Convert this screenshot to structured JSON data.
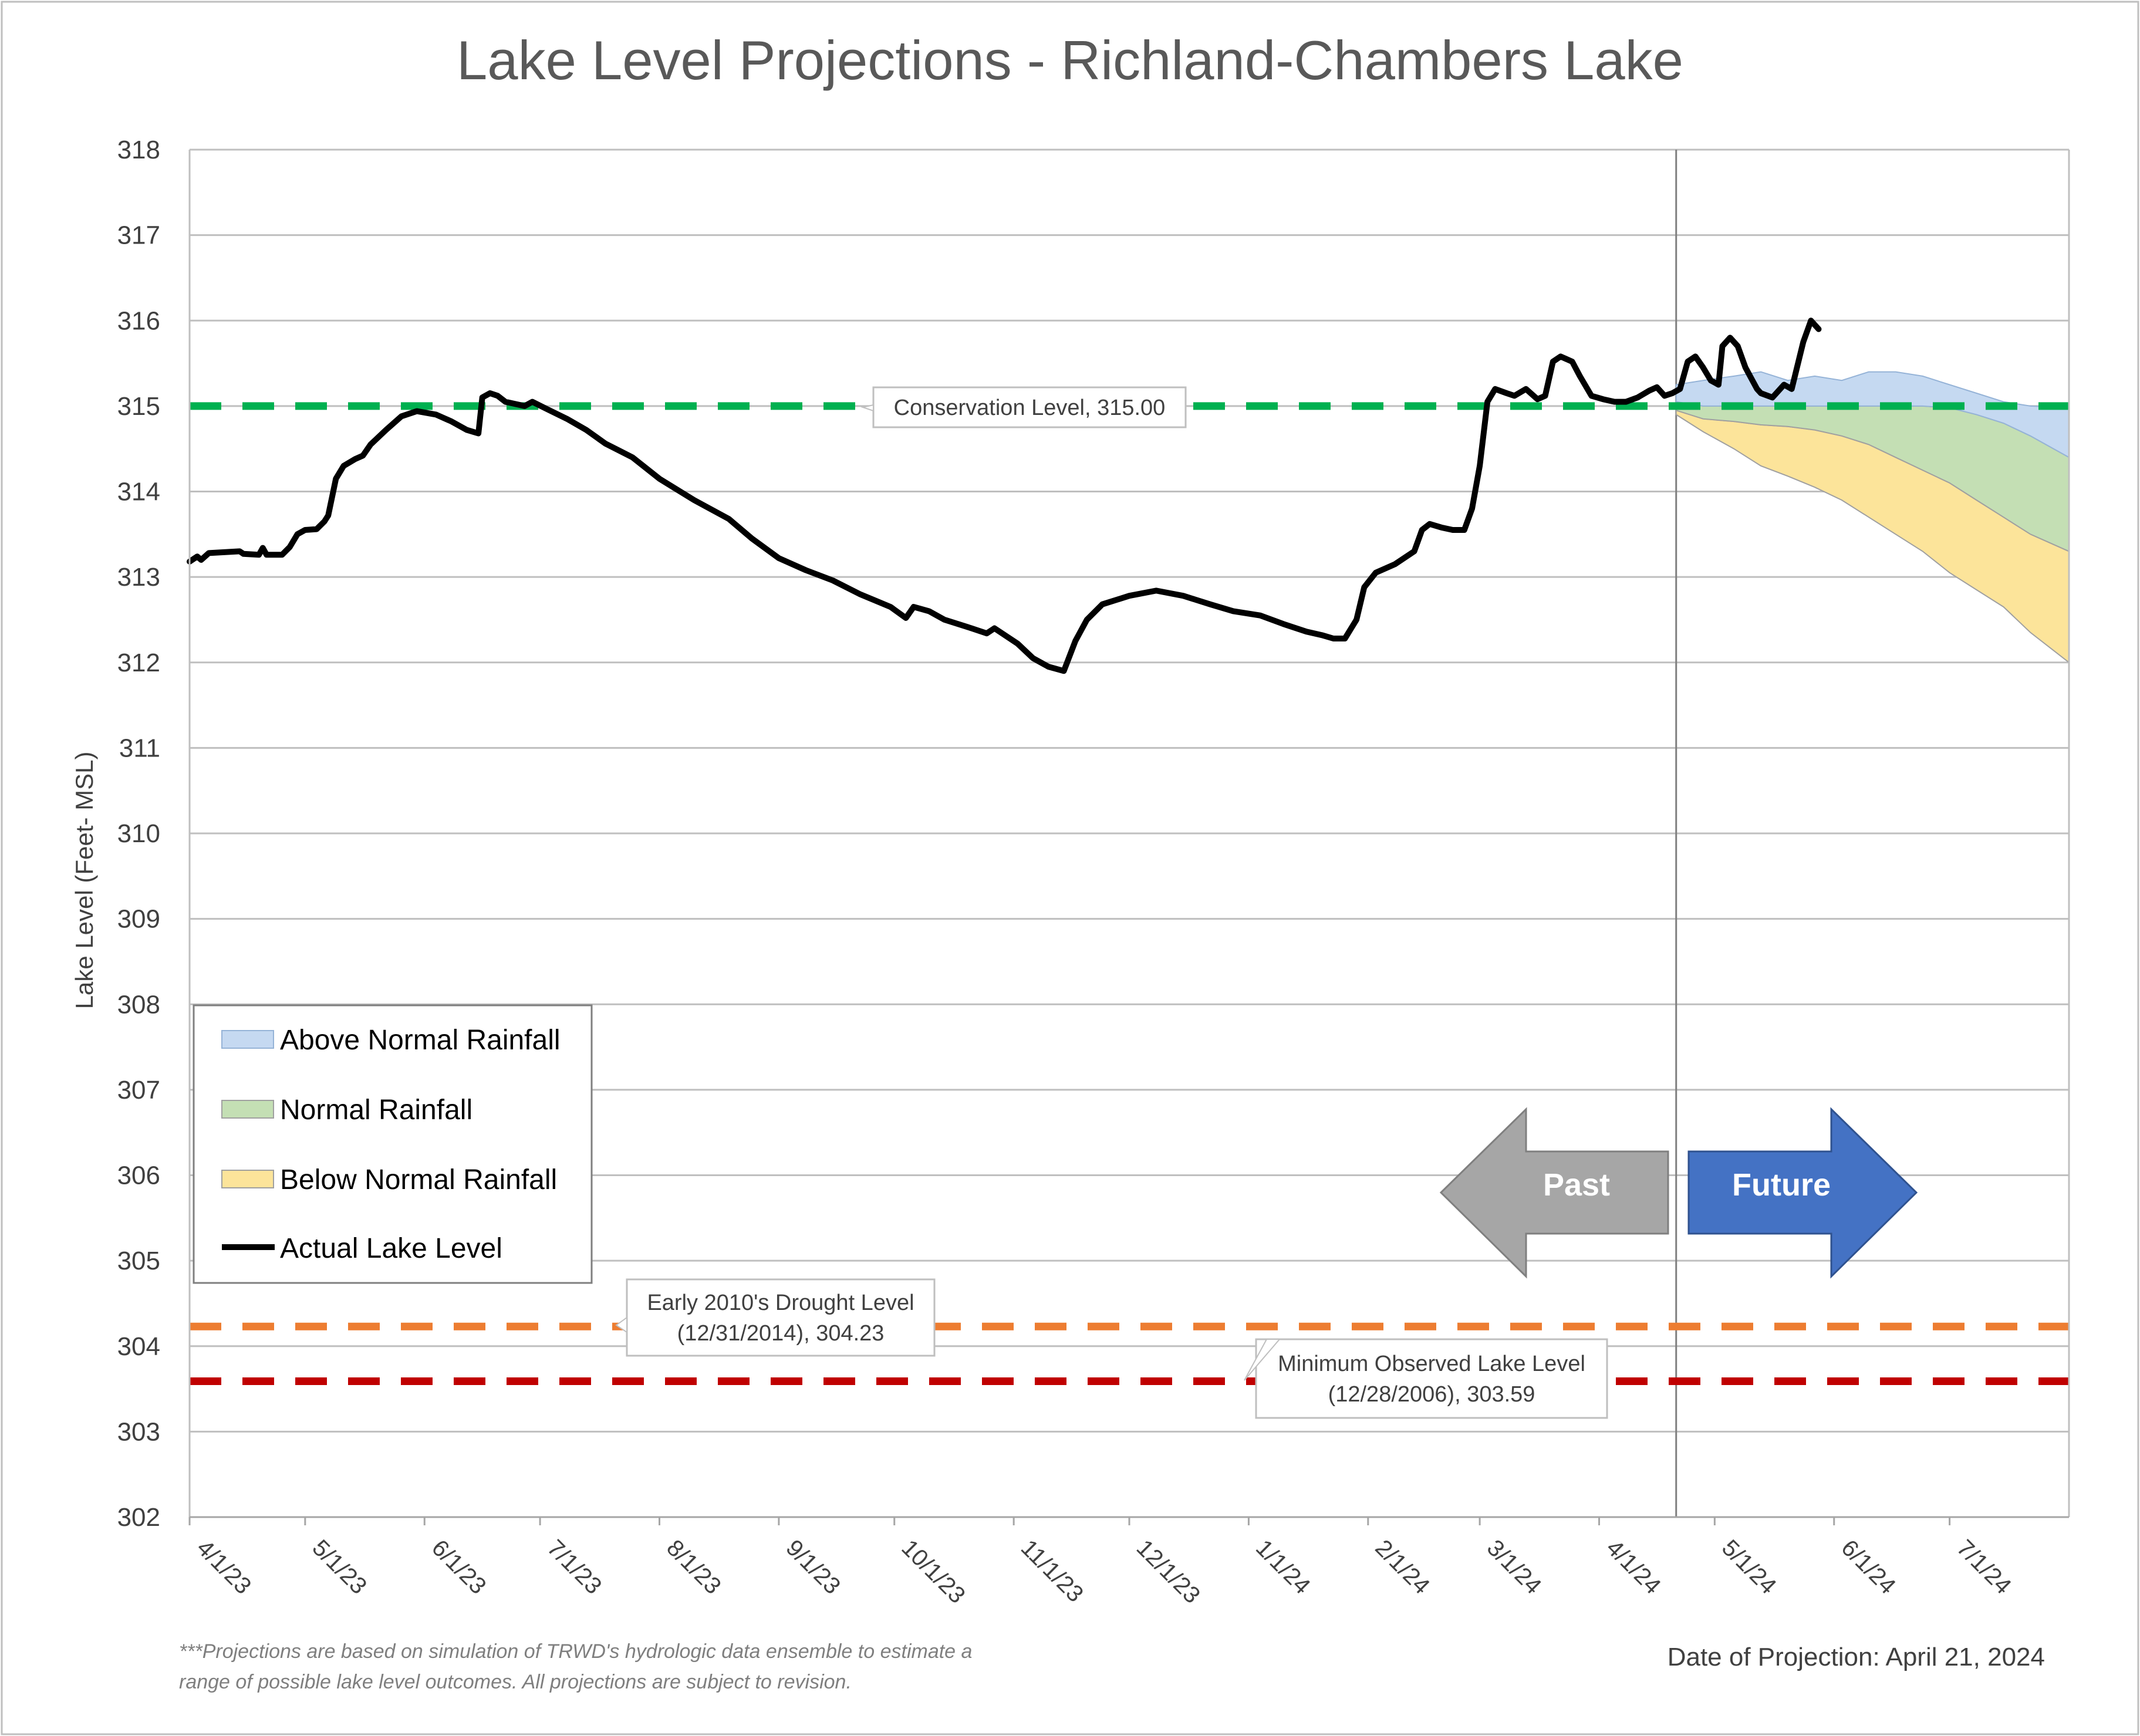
{
  "title": "Lake Level Projections - Richland-Chambers Lake",
  "footnote": [
    "***Projections are based on simulation of TRWD's hydrologic data ensemble to estimate a",
    "range of possible lake level outcomes.  All projections are subject to revision."
  ],
  "projection_date": "Date of Projection: April 21, 2024",
  "arrows": {
    "past": "Past",
    "future": "Future"
  },
  "colors": {
    "above": "#c5d9f1",
    "above_edge": "#95b3d7",
    "normal": "#c4dfb4",
    "normal_edge": "#a0a0a0",
    "below": "#fce49a",
    "below_edge": "#a0a0a0",
    "actual": "#000000",
    "conservation": "#00b050",
    "drought": "#ed7d31",
    "minimum": "#c00000",
    "past_arrow": "#a6a6a6",
    "future_arrow": "#4472c4",
    "grid": "#bfbfbf"
  },
  "chart_data": {
    "type": "area",
    "ylabel": "Lake Level (Feet- MSL)",
    "xlabel": "",
    "ylim": [
      302,
      318
    ],
    "yticks": [
      "302",
      "303",
      "304",
      "305",
      "306",
      "307",
      "308",
      "309",
      "310",
      "311",
      "312",
      "313",
      "314",
      "315",
      "316",
      "317",
      "318"
    ],
    "xlim": [
      "2023-04-01",
      "2024-08-01"
    ],
    "xticks": [
      {
        "label": "4/1/23",
        "date": "2023-04-01"
      },
      {
        "label": "5/1/23",
        "date": "2023-05-01"
      },
      {
        "label": "6/1/23",
        "date": "2023-06-01"
      },
      {
        "label": "7/1/23",
        "date": "2023-07-01"
      },
      {
        "label": "8/1/23",
        "date": "2023-08-01"
      },
      {
        "label": "9/1/23",
        "date": "2023-09-01"
      },
      {
        "label": "10/1/23",
        "date": "2023-10-01"
      },
      {
        "label": "11/1/23",
        "date": "2023-11-01"
      },
      {
        "label": "12/1/23",
        "date": "2023-12-01"
      },
      {
        "label": "1/1/24",
        "date": "2024-01-01"
      },
      {
        "label": "2/1/24",
        "date": "2024-02-01"
      },
      {
        "label": "3/1/24",
        "date": "2024-03-01"
      },
      {
        "label": "4/1/24",
        "date": "2024-04-01"
      },
      {
        "label": "5/1/24",
        "date": "2024-05-01"
      },
      {
        "label": "6/1/24",
        "date": "2024-06-01"
      },
      {
        "label": "7/1/24",
        "date": "2024-07-01"
      }
    ],
    "grid": true,
    "legend_position": "lower-left",
    "legend": [
      {
        "label": "Above Normal Rainfall",
        "key": "above"
      },
      {
        "label": "Normal Rainfall",
        "key": "normal"
      },
      {
        "label": "Below Normal Rainfall",
        "key": "below"
      },
      {
        "label": "Actual Lake Level",
        "key": "actual"
      }
    ],
    "projection_start": "2024-04-21",
    "reference_lines": [
      {
        "key": "conservation",
        "value": 315.0,
        "label": [
          "Conservation Level, 315.00"
        ]
      },
      {
        "key": "drought",
        "value": 304.23,
        "label": [
          "Early 2010's Drought Level",
          "(12/31/2014), 304.23"
        ]
      },
      {
        "key": "minimum",
        "value": 303.59,
        "label": [
          "Minimum Observed Lake Level",
          "(12/28/2006), 303.59"
        ]
      }
    ],
    "series": [
      {
        "name": "Actual Lake Level",
        "key": "actual",
        "points": [
          [
            "2023-04-01",
            313.18
          ],
          [
            "2023-04-03",
            313.24
          ],
          [
            "2023-04-04",
            313.2
          ],
          [
            "2023-04-06",
            313.28
          ],
          [
            "2023-04-10",
            313.29
          ],
          [
            "2023-04-14",
            313.3
          ],
          [
            "2023-04-15",
            313.27
          ],
          [
            "2023-04-19",
            313.26
          ],
          [
            "2023-04-20",
            313.34
          ],
          [
            "2023-04-21",
            313.26
          ],
          [
            "2023-04-25",
            313.26
          ],
          [
            "2023-04-27",
            313.35
          ],
          [
            "2023-04-29",
            313.5
          ],
          [
            "2023-05-01",
            313.55
          ],
          [
            "2023-05-04",
            313.56
          ],
          [
            "2023-05-06",
            313.65
          ],
          [
            "2023-05-07",
            313.72
          ],
          [
            "2023-05-09",
            314.15
          ],
          [
            "2023-05-11",
            314.3
          ],
          [
            "2023-05-14",
            314.38
          ],
          [
            "2023-05-16",
            314.42
          ],
          [
            "2023-05-18",
            314.55
          ],
          [
            "2023-05-22",
            314.72
          ],
          [
            "2023-05-26",
            314.88
          ],
          [
            "2023-05-30",
            314.94
          ],
          [
            "2023-06-04",
            314.9
          ],
          [
            "2023-06-08",
            314.82
          ],
          [
            "2023-06-12",
            314.72
          ],
          [
            "2023-06-15",
            314.68
          ],
          [
            "2023-06-16",
            315.1
          ],
          [
            "2023-06-18",
            315.15
          ],
          [
            "2023-06-20",
            315.12
          ],
          [
            "2023-06-22",
            315.05
          ],
          [
            "2023-06-27",
            315.0
          ],
          [
            "2023-06-29",
            315.05
          ],
          [
            "2023-07-03",
            314.96
          ],
          [
            "2023-07-08",
            314.85
          ],
          [
            "2023-07-13",
            314.72
          ],
          [
            "2023-07-18",
            314.56
          ],
          [
            "2023-07-25",
            314.4
          ],
          [
            "2023-08-01",
            314.15
          ],
          [
            "2023-08-10",
            313.9
          ],
          [
            "2023-08-19",
            313.68
          ],
          [
            "2023-08-25",
            313.45
          ],
          [
            "2023-09-01",
            313.22
          ],
          [
            "2023-09-08",
            313.08
          ],
          [
            "2023-09-15",
            312.96
          ],
          [
            "2023-09-22",
            312.8
          ],
          [
            "2023-09-30",
            312.65
          ],
          [
            "2023-10-04",
            312.52
          ],
          [
            "2023-10-06",
            312.65
          ],
          [
            "2023-10-10",
            312.6
          ],
          [
            "2023-10-14",
            312.5
          ],
          [
            "2023-10-21",
            312.4
          ],
          [
            "2023-10-25",
            312.34
          ],
          [
            "2023-10-27",
            312.4
          ],
          [
            "2023-11-02",
            312.22
          ],
          [
            "2023-11-06",
            312.05
          ],
          [
            "2023-11-10",
            311.95
          ],
          [
            "2023-11-14",
            311.9
          ],
          [
            "2023-11-17",
            312.25
          ],
          [
            "2023-11-20",
            312.5
          ],
          [
            "2023-11-24",
            312.68
          ],
          [
            "2023-12-01",
            312.78
          ],
          [
            "2023-12-08",
            312.84
          ],
          [
            "2023-12-15",
            312.78
          ],
          [
            "2023-12-22",
            312.68
          ],
          [
            "2023-12-28",
            312.6
          ],
          [
            "2024-01-04",
            312.55
          ],
          [
            "2024-01-10",
            312.45
          ],
          [
            "2024-01-16",
            312.36
          ],
          [
            "2024-01-20",
            312.32
          ],
          [
            "2024-01-23",
            312.28
          ],
          [
            "2024-01-26",
            312.28
          ],
          [
            "2024-01-29",
            312.5
          ],
          [
            "2024-01-31",
            312.88
          ],
          [
            "2024-02-03",
            313.05
          ],
          [
            "2024-02-08",
            313.15
          ],
          [
            "2024-02-13",
            313.3
          ],
          [
            "2024-02-15",
            313.55
          ],
          [
            "2024-02-17",
            313.62
          ],
          [
            "2024-02-20",
            313.58
          ],
          [
            "2024-02-23",
            313.55
          ],
          [
            "2024-02-26",
            313.55
          ],
          [
            "2024-02-28",
            313.8
          ],
          [
            "2024-03-01",
            314.3
          ],
          [
            "2024-03-03",
            315.05
          ],
          [
            "2024-03-05",
            315.2
          ],
          [
            "2024-03-08",
            315.15
          ],
          [
            "2024-03-10",
            315.12
          ],
          [
            "2024-03-13",
            315.2
          ],
          [
            "2024-03-16",
            315.08
          ],
          [
            "2024-03-18",
            315.12
          ],
          [
            "2024-03-20",
            315.52
          ],
          [
            "2024-03-22",
            315.58
          ],
          [
            "2024-03-25",
            315.52
          ],
          [
            "2024-03-27",
            315.35
          ],
          [
            "2024-03-30",
            315.12
          ],
          [
            "2024-04-02",
            315.08
          ],
          [
            "2024-04-05",
            315.05
          ],
          [
            "2024-04-08",
            315.05
          ],
          [
            "2024-04-11",
            315.1
          ],
          [
            "2024-04-14",
            315.18
          ],
          [
            "2024-04-16",
            315.22
          ],
          [
            "2024-04-18",
            315.12
          ],
          [
            "2024-04-20",
            315.15
          ],
          [
            "2024-04-22",
            315.2
          ],
          [
            "2024-04-24",
            315.52
          ],
          [
            "2024-04-26",
            315.58
          ],
          [
            "2024-04-28",
            315.45
          ],
          [
            "2024-04-30",
            315.3
          ],
          [
            "2024-05-02",
            315.25
          ],
          [
            "2024-05-03",
            315.7
          ],
          [
            "2024-05-05",
            315.8
          ],
          [
            "2024-05-07",
            315.7
          ],
          [
            "2024-05-09",
            315.45
          ],
          [
            "2024-05-12",
            315.2
          ],
          [
            "2024-05-13",
            315.15
          ],
          [
            "2024-05-16",
            315.1
          ],
          [
            "2024-05-19",
            315.25
          ],
          [
            "2024-05-21",
            315.2
          ],
          [
            "2024-05-24",
            315.75
          ],
          [
            "2024-05-26",
            316.0
          ],
          [
            "2024-05-28",
            315.9
          ]
        ]
      },
      {
        "name": "Above Normal Rainfall",
        "key": "above",
        "x": [
          "2024-04-21",
          "2024-04-28",
          "2024-05-06",
          "2024-05-13",
          "2024-05-20",
          "2024-05-27",
          "2024-06-03",
          "2024-06-10",
          "2024-06-17",
          "2024-06-24",
          "2024-07-01",
          "2024-07-08",
          "2024-07-15",
          "2024-07-22",
          "2024-08-01"
        ],
        "upper": [
          315.25,
          315.3,
          315.35,
          315.4,
          315.3,
          315.35,
          315.3,
          315.4,
          315.4,
          315.35,
          315.25,
          315.15,
          315.05,
          315.0,
          314.98
        ],
        "lower": [
          315.05,
          315.0,
          315.0,
          315.0,
          315.0,
          315.0,
          315.0,
          315.0,
          315.0,
          315.0,
          314.98,
          314.9,
          314.8,
          314.65,
          314.4
        ]
      },
      {
        "name": "Normal Rainfall",
        "key": "normal",
        "x": [
          "2024-04-21",
          "2024-04-28",
          "2024-05-06",
          "2024-05-13",
          "2024-05-20",
          "2024-05-27",
          "2024-06-03",
          "2024-06-10",
          "2024-06-17",
          "2024-06-24",
          "2024-07-01",
          "2024-07-08",
          "2024-07-15",
          "2024-07-22",
          "2024-08-01"
        ],
        "upper": [
          315.05,
          315.0,
          315.0,
          315.0,
          315.0,
          315.0,
          315.0,
          315.0,
          315.0,
          315.0,
          314.98,
          314.9,
          314.8,
          314.65,
          314.4
        ],
        "lower": [
          314.95,
          314.85,
          314.82,
          314.78,
          314.76,
          314.72,
          314.65,
          314.55,
          314.4,
          314.25,
          314.1,
          313.9,
          313.7,
          313.5,
          313.3
        ]
      },
      {
        "name": "Below Normal Rainfall",
        "key": "below",
        "x": [
          "2024-04-21",
          "2024-04-28",
          "2024-05-06",
          "2024-05-13",
          "2024-05-20",
          "2024-05-27",
          "2024-06-03",
          "2024-06-10",
          "2024-06-17",
          "2024-06-24",
          "2024-07-01",
          "2024-07-08",
          "2024-07-15",
          "2024-07-22",
          "2024-08-01"
        ],
        "upper": [
          314.95,
          314.85,
          314.82,
          314.78,
          314.76,
          314.72,
          314.65,
          314.55,
          314.4,
          314.25,
          314.1,
          313.9,
          313.7,
          313.5,
          313.3
        ],
        "lower": [
          314.9,
          314.7,
          314.5,
          314.3,
          314.18,
          314.05,
          313.9,
          313.7,
          313.5,
          313.3,
          313.05,
          312.85,
          312.65,
          312.35,
          312.0
        ]
      }
    ]
  }
}
